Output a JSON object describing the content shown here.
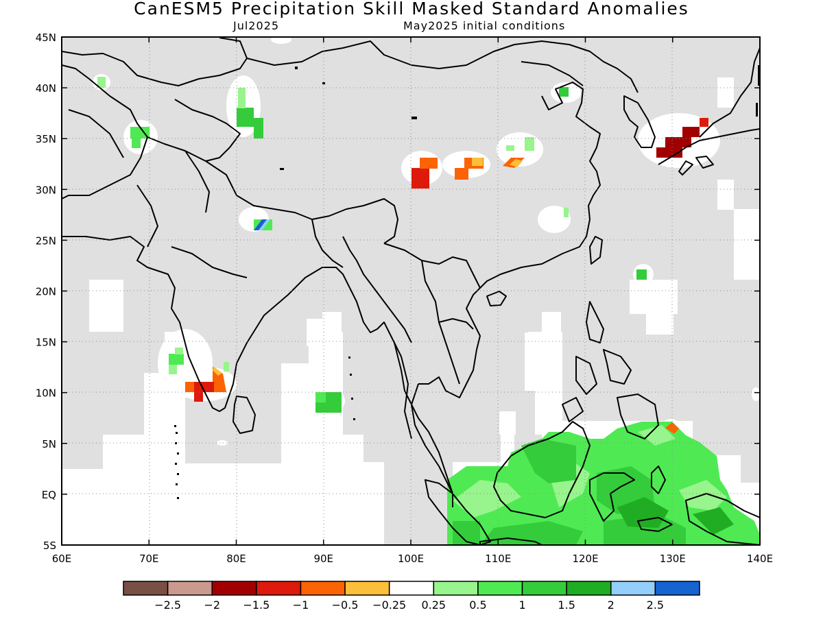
{
  "title": "CanESM5 Precipitation Skill Masked Standard Anomalies",
  "valid_month": "Jul2025",
  "init": "May2025 initial conditions",
  "map": {
    "lon_range": [
      60,
      140
    ],
    "lat_range": [
      -5,
      45
    ],
    "lon_ticks": [
      {
        "value": 60,
        "label": "60E"
      },
      {
        "value": 70,
        "label": "70E"
      },
      {
        "value": 80,
        "label": "80E"
      },
      {
        "value": 90,
        "label": "90E"
      },
      {
        "value": 100,
        "label": "100E"
      },
      {
        "value": 110,
        "label": "110E"
      },
      {
        "value": 120,
        "label": "120E"
      },
      {
        "value": 130,
        "label": "130E"
      },
      {
        "value": 140,
        "label": "140E"
      }
    ],
    "lat_ticks": [
      {
        "value": 45,
        "label": "45N"
      },
      {
        "value": 40,
        "label": "40N"
      },
      {
        "value": 35,
        "label": "35N"
      },
      {
        "value": 30,
        "label": "30N"
      },
      {
        "value": 25,
        "label": "25N"
      },
      {
        "value": 20,
        "label": "20N"
      },
      {
        "value": 15,
        "label": "15N"
      },
      {
        "value": 10,
        "label": "10N"
      },
      {
        "value": 5,
        "label": "5N"
      },
      {
        "value": 0,
        "label": "EQ"
      },
      {
        "value": -5,
        "label": "5S"
      }
    ],
    "mask_color": "#e0e0e0",
    "grid": "dotted"
  },
  "colorbar": {
    "colors": [
      "#7a4f45",
      "#c99a8d",
      "#a20000",
      "#dd1a0b",
      "#fb6304",
      "#fbbf3a",
      "#ffffff",
      "#98f48d",
      "#4fea53",
      "#34cc3b",
      "#20ac23",
      "#94cefa",
      "#1663d2"
    ],
    "labels": [
      "−2.5",
      "−2",
      "−1.5",
      "−1",
      "−0.5",
      "−0.25",
      "0.25",
      "0.5",
      "1",
      "1.5",
      "2",
      "2.5"
    ]
  }
}
